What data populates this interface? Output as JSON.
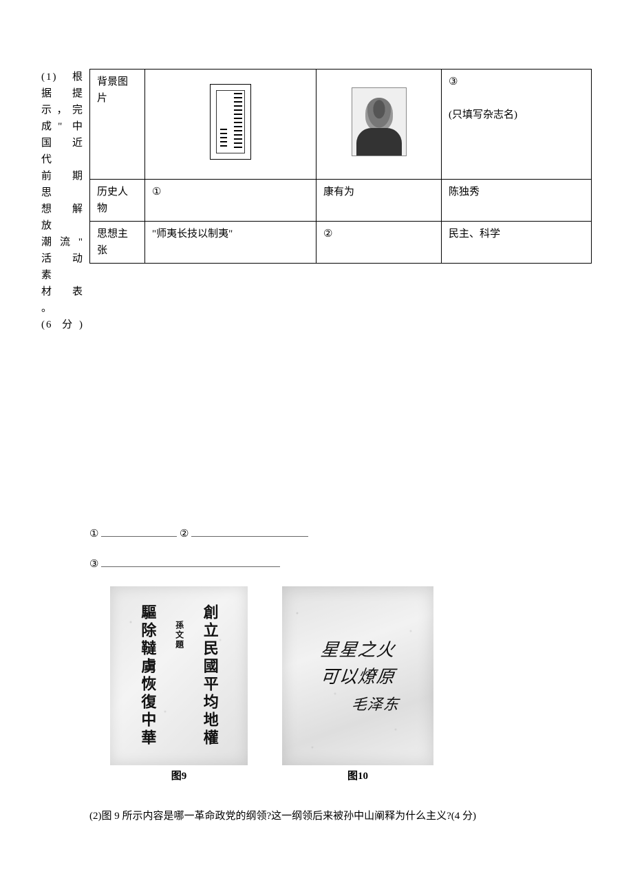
{
  "question1": {
    "label_lines": [
      "(1) 根",
      "据　提",
      "示，完",
      "成\" 中",
      "国 近 代",
      "前 期 思",
      "想 解 放",
      "潮 流 \"",
      "活 动 素",
      "材 表 。",
      "(6 分)"
    ],
    "table": {
      "rows": {
        "r1": {
          "header": "背景图片",
          "c3_top": "③",
          "c3_note": "(只填写杂志名)"
        },
        "r2": {
          "header": "历史人物",
          "c1": "①",
          "c2": "康有为",
          "c3": "陈独秀"
        },
        "r3": {
          "header": "思想主张",
          "c1": "\"师夷长技以制夷\"",
          "c2": "②",
          "c3": "民主、科学"
        }
      }
    }
  },
  "blanks": {
    "b1": "①",
    "b2": "②",
    "b3": "③"
  },
  "figures": {
    "fig9": {
      "col_right": "驅除韃虜恢復中華",
      "col_middle_small": "孫文題",
      "col_left": "創立民國平均地權",
      "caption": "图9"
    },
    "fig10": {
      "line1": "星星之火",
      "line2": "可以燎原",
      "signature": "毛泽东",
      "caption": "图10"
    }
  },
  "question2": "(2)图 9 所示内容是哪一革命政党的纲领?这一纲领后来被孙中山阐释为什么主义?(4 分)",
  "colors": {
    "page_bg": "#ffffff",
    "text": "#000000",
    "table_border": "#000000",
    "underline": "#666666",
    "figure_bg_light": "#f2f2f2",
    "figure_bg_dark": "#dedede"
  },
  "typography": {
    "body_fontsize_pt": 11,
    "calligraphy_fontsize_pt": 18,
    "font_family": "SimSun"
  }
}
